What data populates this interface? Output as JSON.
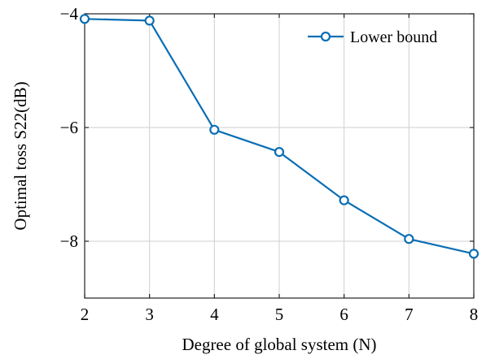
{
  "chart_data": {
    "type": "line",
    "xlabel": "Degree of global system (N)",
    "ylabel": "Optimal toss S22(dB)",
    "xlim": [
      2,
      8
    ],
    "ylim": [
      -9,
      -4
    ],
    "xticks": [
      "2",
      "3",
      "4",
      "5",
      "6",
      "7",
      "8"
    ],
    "yticks": [
      "−4",
      "−6",
      "−8"
    ],
    "ytick_values": [
      -4,
      -6,
      -8
    ],
    "grid": true,
    "legend_position": "top-right",
    "series": [
      {
        "name": "Lower bound",
        "color": "#0a6eb4",
        "marker": "circle",
        "x": [
          2,
          3,
          4,
          5,
          6,
          7,
          8
        ],
        "y": [
          -4.09,
          -4.12,
          -6.04,
          -6.43,
          -7.28,
          -7.96,
          -8.22
        ]
      }
    ]
  }
}
